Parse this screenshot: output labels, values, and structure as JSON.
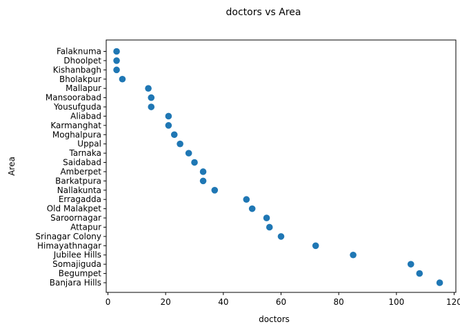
{
  "chart_data": {
    "type": "scatter",
    "title": "doctors vs Area",
    "xlabel": "doctors",
    "ylabel": "Area",
    "xlim": [
      -0.6,
      120.6
    ],
    "xticks": [
      0,
      20,
      40,
      60,
      80,
      100,
      120
    ],
    "grid": false,
    "color": "#1f77b4",
    "categories": [
      "Falaknuma",
      "Dhoolpet",
      "Kishanbagh",
      "Bholakpur",
      "Mallapur",
      "Mansoorabad",
      "Yousufguda",
      "Aliabad",
      "Karmanghat",
      "Moghalpura",
      "Uppal",
      "Tarnaka",
      "Saidabad",
      "Amberpet",
      "Barkatpura",
      "Nallakunta",
      "Erragadda",
      "Old Malakpet",
      "Saroornagar",
      "Attapur",
      "Srinagar Colony",
      "Himayathnagar",
      "Jubilee Hills",
      "Somajiguda",
      "Begumpet",
      "Banjara Hills"
    ],
    "values": [
      3,
      3,
      3,
      5,
      14,
      15,
      15,
      21,
      21,
      23,
      25,
      28,
      30,
      33,
      33,
      37,
      48,
      50,
      55,
      56,
      60,
      72,
      85,
      105,
      108,
      115
    ]
  }
}
